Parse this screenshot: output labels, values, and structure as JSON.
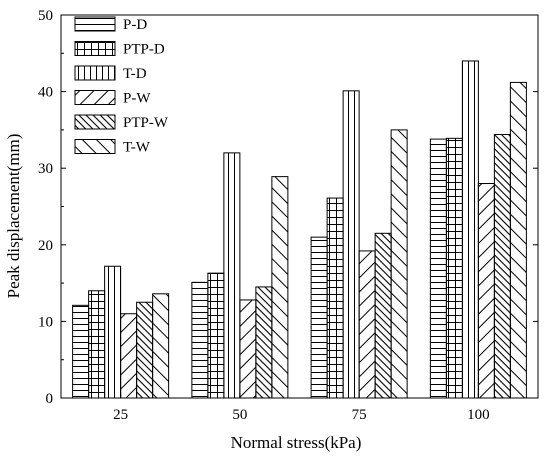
{
  "chart_data": {
    "type": "bar",
    "title": "",
    "xlabel": "Normal stress(kPa)",
    "ylabel": "Peak displacement(mm)",
    "categories": [
      "25",
      "50",
      "75",
      "100"
    ],
    "ylim": [
      0,
      50
    ],
    "yticks": [
      0,
      10,
      20,
      30,
      40,
      50
    ],
    "grid": false,
    "legend_position": "top-left",
    "series": [
      {
        "name": "P-D",
        "pattern": "horizontal-lines",
        "values": [
          12.1,
          15.1,
          21.0,
          33.8
        ]
      },
      {
        "name": "PTP-D",
        "pattern": "grid",
        "values": [
          14.0,
          16.3,
          26.1,
          33.9
        ]
      },
      {
        "name": "T-D",
        "pattern": "vertical-lines",
        "values": [
          17.2,
          32.0,
          40.1,
          44.0
        ]
      },
      {
        "name": "P-W",
        "pattern": "forward-diagonal",
        "values": [
          11.0,
          12.8,
          19.2,
          28.0
        ]
      },
      {
        "name": "PTP-W",
        "pattern": "dense-back-diagonal",
        "values": [
          12.5,
          14.5,
          21.5,
          34.4
        ]
      },
      {
        "name": "T-W",
        "pattern": "back-diagonal",
        "values": [
          13.6,
          28.9,
          35.0,
          41.2
        ]
      }
    ]
  }
}
